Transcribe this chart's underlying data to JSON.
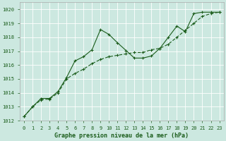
{
  "title": "Graphe pression niveau de la mer (hPa)",
  "bg_color": "#cce8e0",
  "grid_color": "#b0d8d0",
  "line_color": "#1a5c1a",
  "marker_color": "#1a5c1a",
  "xlim": [
    -0.5,
    23.5
  ],
  "ylim": [
    1012,
    1020.5
  ],
  "xticks": [
    0,
    1,
    2,
    3,
    4,
    5,
    6,
    7,
    8,
    9,
    10,
    11,
    12,
    13,
    14,
    15,
    16,
    17,
    18,
    19,
    20,
    21,
    22,
    23
  ],
  "yticks": [
    1012,
    1013,
    1014,
    1015,
    1016,
    1017,
    1018,
    1019,
    1020
  ],
  "series1_x": [
    0,
    1,
    2,
    3,
    4,
    5,
    6,
    7,
    8,
    9,
    10,
    11,
    12,
    13,
    14,
    15,
    16,
    17,
    18,
    19,
    20,
    21,
    22,
    23
  ],
  "series1_y": [
    1012.3,
    1013.0,
    1013.6,
    1013.6,
    1014.1,
    1015.1,
    1016.3,
    1016.6,
    1017.1,
    1018.55,
    1018.2,
    1017.6,
    1017.05,
    1016.5,
    1016.5,
    1016.65,
    1017.2,
    1018.0,
    1018.8,
    1018.4,
    1019.7,
    1019.8,
    1019.8,
    1019.8
  ],
  "series2_x": [
    0,
    1,
    2,
    3,
    4,
    5,
    6,
    7,
    8,
    9,
    10,
    11,
    12,
    13,
    14,
    15,
    16,
    17,
    18,
    19,
    20,
    21,
    22,
    23
  ],
  "series2_y": [
    1012.3,
    1013.0,
    1013.5,
    1013.55,
    1014.0,
    1015.0,
    1015.4,
    1015.7,
    1016.1,
    1016.4,
    1016.6,
    1016.7,
    1016.8,
    1016.9,
    1016.9,
    1017.1,
    1017.2,
    1017.5,
    1018.0,
    1018.5,
    1019.0,
    1019.5,
    1019.7,
    1019.8
  ],
  "tick_fontsize": 5,
  "label_fontsize": 6,
  "fig_width": 3.2,
  "fig_height": 2.0,
  "dpi": 100
}
